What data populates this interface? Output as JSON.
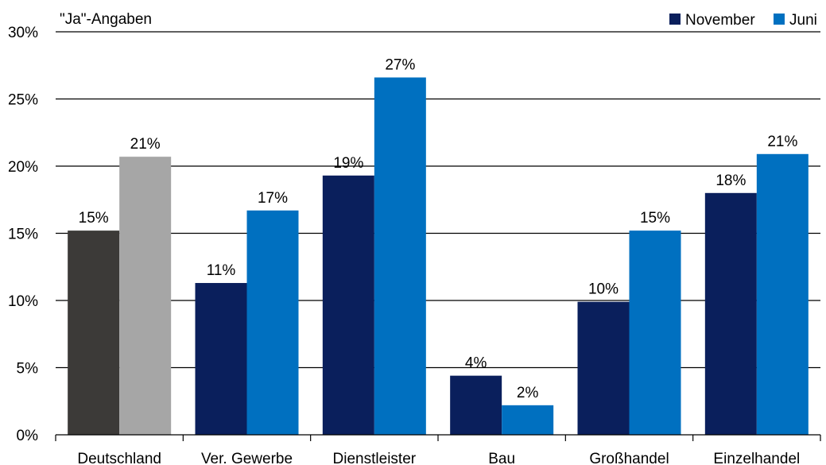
{
  "chart_data": {
    "type": "bar",
    "subtitle": "\"Ja\"-Angaben",
    "categories": [
      "Deutschland",
      "Ver. Gewerbe",
      "Dienstleister",
      "Bau",
      "Großhandel",
      "Einzelhandel"
    ],
    "series": [
      {
        "name": "November",
        "values": [
          15.2,
          11.3,
          19.3,
          4.4,
          9.9,
          18.0
        ],
        "labels": [
          "15%",
          "11%",
          "19%",
          "4%",
          "10%",
          "18%"
        ],
        "color": "#0a1f5c"
      },
      {
        "name": "Juni",
        "values": [
          20.7,
          16.7,
          26.6,
          2.2,
          15.2,
          20.9
        ],
        "labels": [
          "21%",
          "17%",
          "27%",
          "2%",
          "15%",
          "21%"
        ],
        "color": "#0070c0"
      }
    ],
    "highlight_category_colors": {
      "Deutschland": [
        "#3c3a38",
        "#a6a6a6"
      ]
    },
    "ylim": [
      0,
      30
    ],
    "yticks": [
      0,
      5,
      10,
      15,
      20,
      25,
      30
    ],
    "ytick_labels": [
      "0%",
      "5%",
      "10%",
      "15%",
      "20%",
      "25%",
      "30%"
    ],
    "grid": true,
    "legend_position": "top-right"
  }
}
